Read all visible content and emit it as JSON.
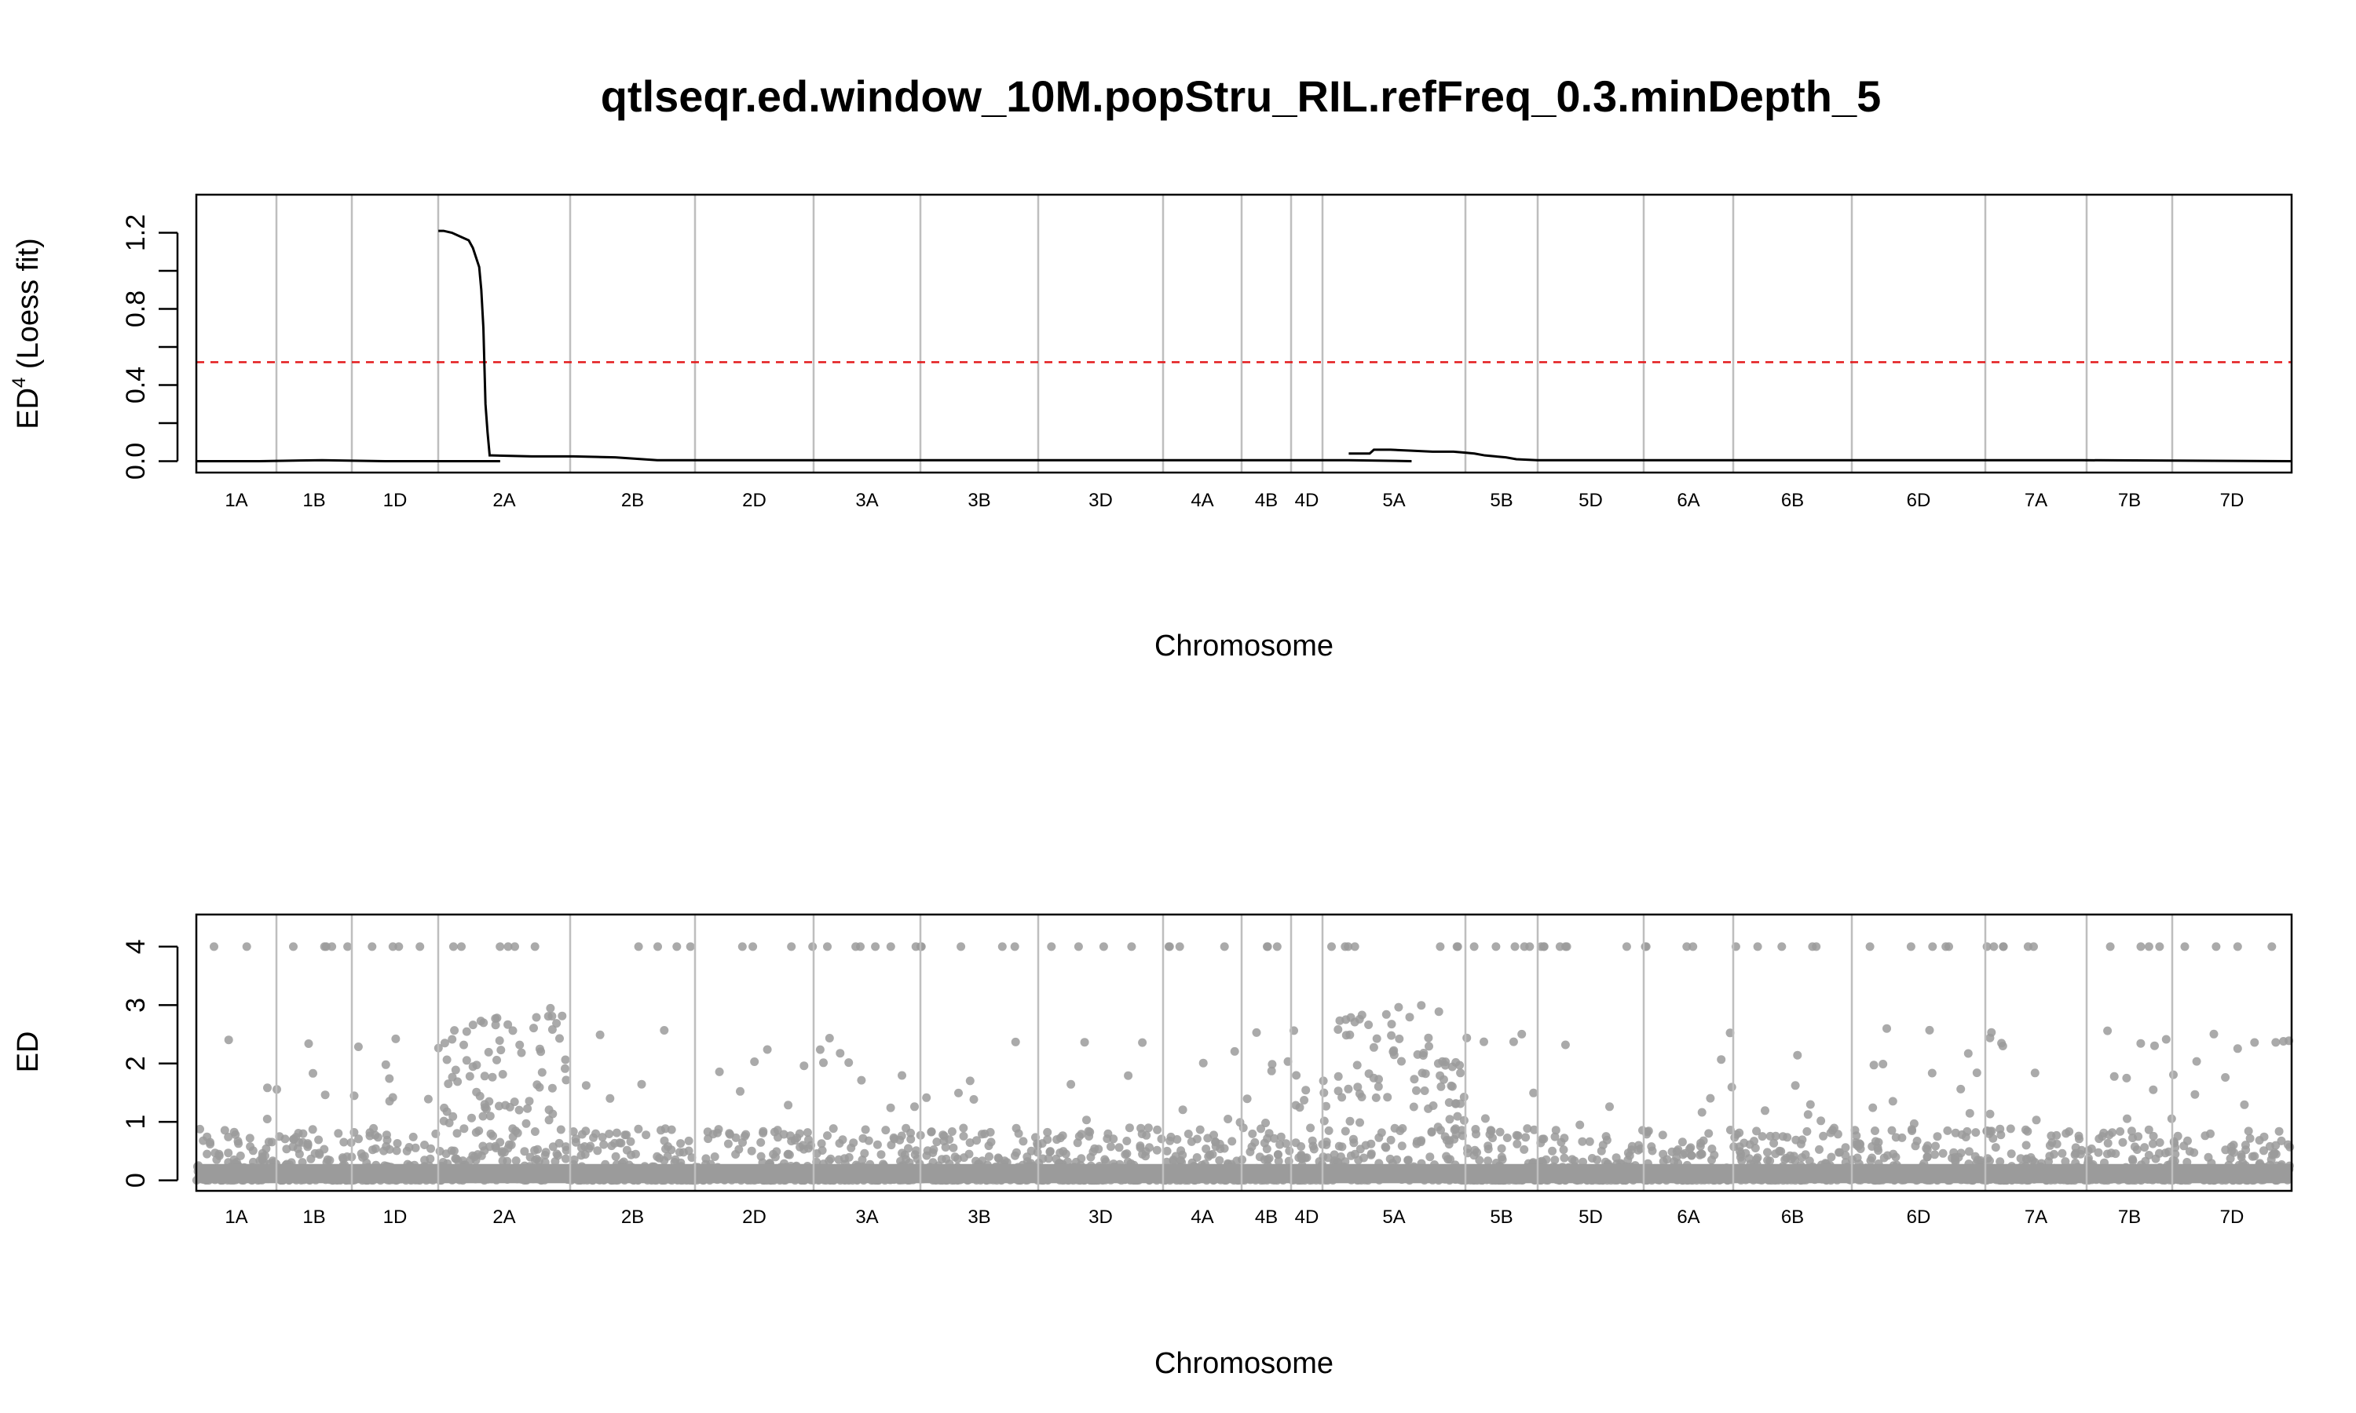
{
  "figure": {
    "title": "qtlseqr.ed.window_10M.popStru_RIL.refFreq_0.3.minDepth_5"
  },
  "chromosomes": [
    "1A",
    "1B",
    "1D",
    "2A",
    "2B",
    "2D",
    "3A",
    "3B",
    "3D",
    "4A",
    "4B",
    "4D",
    "5A",
    "5B",
    "5D",
    "6A",
    "6B",
    "6D",
    "7A",
    "7B",
    "7D"
  ],
  "colors": {
    "line": "#000000",
    "threshold": "#e31a1c",
    "separator": "#bebebe",
    "points": "#9b9b9b",
    "frame": "#000000"
  },
  "chart_data": [
    {
      "type": "line",
      "ylabel_main": "ED",
      "ylabel_sup": "4",
      "ylabel_suffix": "(Loess fit)",
      "xlabel": "Chromosome",
      "ylim": [
        -0.06,
        1.4
      ],
      "yticks": [
        0.0,
        0.4,
        0.8,
        1.2
      ],
      "yminor": [
        0.2,
        0.6,
        1.0
      ],
      "threshold": 0.52,
      "x_axis": "genome position (fraction)",
      "x": [
        0.0,
        0.03,
        0.06,
        0.09,
        0.12,
        0.145,
        0.1155,
        0.118,
        0.122,
        0.126,
        0.13,
        0.132,
        0.135,
        0.136,
        0.137,
        0.1375,
        0.138,
        0.139,
        0.14,
        0.141,
        0.16,
        0.18,
        0.2,
        0.22,
        0.3,
        0.4,
        0.5,
        0.55,
        0.58,
        0.55,
        0.56,
        0.562,
        0.57,
        0.58,
        0.59,
        0.6,
        0.605,
        0.61,
        0.615,
        0.62,
        0.625,
        0.63,
        0.64,
        0.7,
        0.8,
        0.9,
        1.0
      ],
      "y": [
        0.0,
        0.0,
        0.005,
        0.0,
        0.0,
        0.0,
        1.21,
        1.21,
        1.2,
        1.18,
        1.16,
        1.12,
        1.02,
        0.9,
        0.7,
        0.5,
        0.3,
        0.15,
        0.03,
        0.03,
        0.025,
        0.025,
        0.02,
        0.005,
        0.005,
        0.005,
        0.005,
        0.005,
        0.0,
        0.04,
        0.04,
        0.06,
        0.06,
        0.055,
        0.05,
        0.05,
        0.045,
        0.04,
        0.03,
        0.025,
        0.02,
        0.01,
        0.005,
        0.005,
        0.005,
        0.005,
        0.0
      ]
    },
    {
      "type": "scatter",
      "ylabel": "ED",
      "xlabel": "Chromosome",
      "ylim": [
        -0.18,
        4.55
      ],
      "yticks": [
        0,
        1,
        2,
        3,
        4
      ],
      "note": "dense scatter of per-SNP ED values; majority near 0, many capped at 4; elevated clusters on 2A and 5A"
    }
  ]
}
